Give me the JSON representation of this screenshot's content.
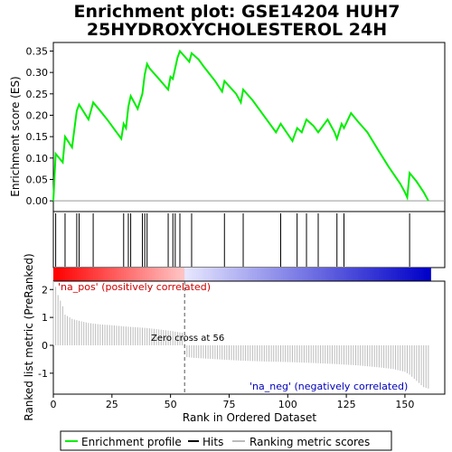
{
  "title": "Enrichment plot: GSE14204 HUH7\n25HYDROXYCHOLESTEROL 24H",
  "title_line1": "Enrichment plot: GSE14204 HUH7",
  "title_line2": "25HYDROXYCHOLESTEROL 24H",
  "colors": {
    "es_line": "#00ee00",
    "hits": "#000000",
    "metric": "#bbbbbb",
    "pos_label": "#cc0000",
    "neg_label": "#0000bb",
    "zero_cross": "#555555"
  },
  "chart_data": [
    {
      "type": "line",
      "panel": "enrichment",
      "ylabel": "Enrichment score (ES)",
      "xlim": [
        0,
        167
      ],
      "ylim": [
        -0.025,
        0.37
      ],
      "yticks": [
        0.0,
        0.05,
        0.1,
        0.15,
        0.2,
        0.25,
        0.3,
        0.35
      ],
      "ytick_labels": [
        "0.00",
        "0.05",
        "0.10",
        "0.15",
        "0.20",
        "0.25",
        "0.30",
        "0.35"
      ],
      "grid": false,
      "series": [
        {
          "name": "Enrichment profile",
          "x": [
            0,
            1,
            4,
            5,
            8,
            10,
            11,
            15,
            17,
            20,
            23,
            29,
            30,
            31,
            32,
            33,
            36,
            38,
            39,
            40,
            41,
            45,
            49,
            50,
            51,
            52,
            53,
            54,
            58,
            59,
            62,
            64,
            69,
            72,
            73,
            78,
            80,
            81,
            85,
            95,
            97,
            102,
            104,
            106,
            108,
            111,
            113,
            117,
            120,
            121,
            123,
            124,
            127,
            130,
            134,
            139,
            143,
            148,
            150,
            151,
            152,
            155,
            158,
            160
          ],
          "y": [
            0.0,
            0.11,
            0.09,
            0.15,
            0.125,
            0.21,
            0.225,
            0.19,
            0.23,
            0.21,
            0.19,
            0.145,
            0.18,
            0.17,
            0.22,
            0.245,
            0.215,
            0.25,
            0.295,
            0.32,
            0.31,
            0.285,
            0.26,
            0.29,
            0.285,
            0.31,
            0.335,
            0.35,
            0.325,
            0.345,
            0.33,
            0.315,
            0.28,
            0.255,
            0.28,
            0.25,
            0.23,
            0.26,
            0.235,
            0.16,
            0.18,
            0.14,
            0.17,
            0.16,
            0.19,
            0.175,
            0.16,
            0.19,
            0.16,
            0.145,
            0.18,
            0.17,
            0.205,
            0.185,
            0.16,
            0.115,
            0.08,
            0.04,
            0.02,
            0.008,
            0.065,
            0.045,
            0.02,
            0.0
          ]
        }
      ]
    },
    {
      "type": "scatter",
      "panel": "hits",
      "series": [
        {
          "name": "Hits",
          "x": [
            1,
            5,
            10,
            11,
            17,
            30,
            32,
            33,
            38,
            39,
            40,
            49,
            51,
            52,
            54,
            59,
            73,
            81,
            97,
            104,
            108,
            113,
            121,
            124,
            152
          ]
        }
      ]
    },
    {
      "type": "area",
      "panel": "ranked_metric",
      "xlabel": "Rank in Ordered Dataset",
      "ylabel": "Ranked list metric (PreRanked)",
      "xlim": [
        0,
        167
      ],
      "ylim": [
        -1.75,
        2.3
      ],
      "yticks": [
        -1,
        0,
        1,
        2
      ],
      "ytick_labels": [
        "-1",
        "0",
        "1",
        "2"
      ],
      "xticks": [
        0,
        25,
        50,
        75,
        100,
        125,
        150
      ],
      "xtick_labels": [
        "0",
        "25",
        "50",
        "75",
        "100",
        "125",
        "150"
      ],
      "zero_cross_rank": 56,
      "annotations": [
        "Zero cross at 56",
        "'na_pos' (positively correlated)",
        "'na_neg' (negatively correlated)"
      ],
      "series": [
        {
          "name": "Ranking metric scores",
          "x": [
            0,
            1,
            2,
            3,
            4,
            5,
            8,
            10,
            15,
            20,
            25,
            30,
            40,
            50,
            55,
            56,
            57,
            60,
            70,
            80,
            90,
            100,
            110,
            120,
            130,
            140,
            145,
            150,
            152,
            154,
            156,
            158,
            160
          ],
          "y": [
            2.3,
            2.1,
            1.8,
            1.6,
            1.4,
            1.1,
            0.95,
            0.9,
            0.8,
            0.75,
            0.72,
            0.68,
            0.62,
            0.52,
            0.45,
            0.05,
            -0.42,
            -0.45,
            -0.5,
            -0.55,
            -0.58,
            -0.6,
            -0.63,
            -0.67,
            -0.72,
            -0.8,
            -0.85,
            -0.95,
            -1.05,
            -1.2,
            -1.35,
            -1.5,
            -1.55
          ]
        }
      ]
    }
  ],
  "legend": {
    "items": [
      {
        "label": "Enrichment profile"
      },
      {
        "label": "Hits"
      },
      {
        "label": "Ranking metric scores"
      }
    ]
  }
}
